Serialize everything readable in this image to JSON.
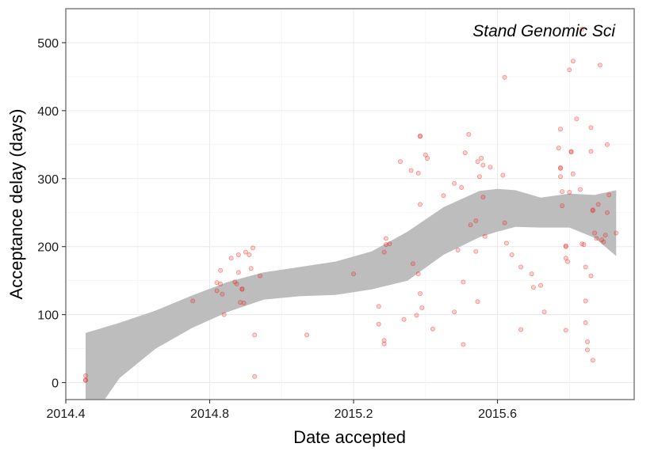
{
  "chart_data": {
    "type": "scatter",
    "title": "",
    "annotation": "Stand Genomic Sci",
    "xlabel": "Date accepted",
    "ylabel": "Acceptance delay (days)",
    "xlim": [
      2014.4,
      2015.98
    ],
    "ylim": [
      -25,
      550
    ],
    "xticks": [
      2014.4,
      2014.8,
      2015.2,
      2015.6
    ],
    "xtick_labels": [
      "2014.4",
      "2014.8",
      "2015.2",
      "2015.6"
    ],
    "yticks": [
      0,
      100,
      200,
      300,
      400,
      500
    ],
    "ytick_labels": [
      "0",
      "100",
      "200",
      "300",
      "400",
      "500"
    ],
    "grid": true,
    "point_color": "#e8281f",
    "smooth_color": "#bdbdbd",
    "points": [
      [
        2014.455,
        4
      ],
      [
        2014.455,
        3
      ],
      [
        2014.455,
        10
      ],
      [
        2014.753,
        120
      ],
      [
        2014.82,
        135
      ],
      [
        2014.82,
        147
      ],
      [
        2014.83,
        145
      ],
      [
        2014.835,
        130
      ],
      [
        2014.84,
        100
      ],
      [
        2014.83,
        165
      ],
      [
        2014.86,
        183
      ],
      [
        2014.87,
        148
      ],
      [
        2014.875,
        145
      ],
      [
        2014.88,
        188
      ],
      [
        2014.88,
        162
      ],
      [
        2014.885,
        118
      ],
      [
        2014.89,
        138
      ],
      [
        2014.89,
        137
      ],
      [
        2014.895,
        117
      ],
      [
        2014.9,
        192
      ],
      [
        2014.91,
        188
      ],
      [
        2014.915,
        168
      ],
      [
        2014.92,
        198
      ],
      [
        2014.925,
        70
      ],
      [
        2014.925,
        9
      ],
      [
        2014.94,
        157
      ],
      [
        2015.07,
        70
      ],
      [
        2015.2,
        160
      ],
      [
        2015.27,
        112
      ],
      [
        2015.27,
        86
      ],
      [
        2015.285,
        57
      ],
      [
        2015.285,
        62
      ],
      [
        2015.285,
        192
      ],
      [
        2015.29,
        212
      ],
      [
        2015.29,
        203
      ],
      [
        2015.3,
        204
      ],
      [
        2015.33,
        325
      ],
      [
        2015.34,
        93
      ],
      [
        2015.36,
        312
      ],
      [
        2015.365,
        175
      ],
      [
        2015.375,
        99
      ],
      [
        2015.38,
        160
      ],
      [
        2015.38,
        308
      ],
      [
        2015.385,
        262
      ],
      [
        2015.385,
        363
      ],
      [
        2015.385,
        362
      ],
      [
        2015.385,
        131
      ],
      [
        2015.39,
        110
      ],
      [
        2015.4,
        335
      ],
      [
        2015.405,
        330
      ],
      [
        2015.42,
        79
      ],
      [
        2015.45,
        275
      ],
      [
        2015.48,
        104
      ],
      [
        2015.48,
        293
      ],
      [
        2015.49,
        195
      ],
      [
        2015.5,
        287
      ],
      [
        2015.505,
        56
      ],
      [
        2015.505,
        148
      ],
      [
        2015.51,
        338
      ],
      [
        2015.52,
        365
      ],
      [
        2015.525,
        232
      ],
      [
        2015.54,
        193
      ],
      [
        2015.54,
        238
      ],
      [
        2015.545,
        325
      ],
      [
        2015.545,
        119
      ],
      [
        2015.55,
        303
      ],
      [
        2015.555,
        330
      ],
      [
        2015.56,
        320
      ],
      [
        2015.56,
        273
      ],
      [
        2015.565,
        215
      ],
      [
        2015.58,
        317
      ],
      [
        2015.615,
        305
      ],
      [
        2015.62,
        449
      ],
      [
        2015.62,
        235
      ],
      [
        2015.625,
        205
      ],
      [
        2015.64,
        188
      ],
      [
        2015.665,
        78
      ],
      [
        2015.665,
        170
      ],
      [
        2015.695,
        160
      ],
      [
        2015.7,
        140
      ],
      [
        2015.72,
        143
      ],
      [
        2015.73,
        104
      ],
      [
        2015.77,
        345
      ],
      [
        2015.775,
        315
      ],
      [
        2015.775,
        316
      ],
      [
        2015.775,
        303
      ],
      [
        2015.775,
        373
      ],
      [
        2015.78,
        281
      ],
      [
        2015.78,
        260
      ],
      [
        2015.79,
        200
      ],
      [
        2015.79,
        201
      ],
      [
        2015.79,
        183
      ],
      [
        2015.79,
        77
      ],
      [
        2015.795,
        178
      ],
      [
        2015.8,
        280
      ],
      [
        2015.8,
        460
      ],
      [
        2015.805,
        339
      ],
      [
        2015.805,
        340
      ],
      [
        2015.81,
        307
      ],
      [
        2015.81,
        473
      ],
      [
        2015.82,
        388
      ],
      [
        2015.83,
        284
      ],
      [
        2015.835,
        520
      ],
      [
        2015.835,
        204
      ],
      [
        2015.84,
        203
      ],
      [
        2015.845,
        170
      ],
      [
        2015.845,
        120
      ],
      [
        2015.845,
        88
      ],
      [
        2015.85,
        60
      ],
      [
        2015.85,
        48
      ],
      [
        2015.86,
        375
      ],
      [
        2015.86,
        340
      ],
      [
        2015.86,
        157
      ],
      [
        2015.865,
        253
      ],
      [
        2015.865,
        254
      ],
      [
        2015.865,
        33
      ],
      [
        2015.87,
        220
      ],
      [
        2015.875,
        212
      ],
      [
        2015.88,
        262
      ],
      [
        2015.885,
        467
      ],
      [
        2015.89,
        210
      ],
      [
        2015.895,
        207
      ],
      [
        2015.9,
        217
      ],
      [
        2015.905,
        250
      ],
      [
        2015.905,
        350
      ],
      [
        2015.91,
        276
      ],
      [
        2015.93,
        220
      ]
    ],
    "smooth_band": {
      "x": [
        2014.455,
        2014.55,
        2014.65,
        2014.75,
        2014.85,
        2014.95,
        2015.05,
        2015.15,
        2015.25,
        2015.35,
        2015.45,
        2015.55,
        2015.6,
        2015.65,
        2015.72,
        2015.8,
        2015.87,
        2015.93
      ],
      "upper": [
        73,
        88,
        106,
        128,
        148,
        162,
        170,
        178,
        193,
        222,
        258,
        282,
        285,
        283,
        272,
        278,
        276,
        283
      ],
      "lower": [
        -65,
        7,
        50,
        80,
        104,
        122,
        127,
        129,
        137,
        150,
        188,
        214,
        222,
        229,
        228,
        228,
        213,
        186
      ]
    }
  }
}
